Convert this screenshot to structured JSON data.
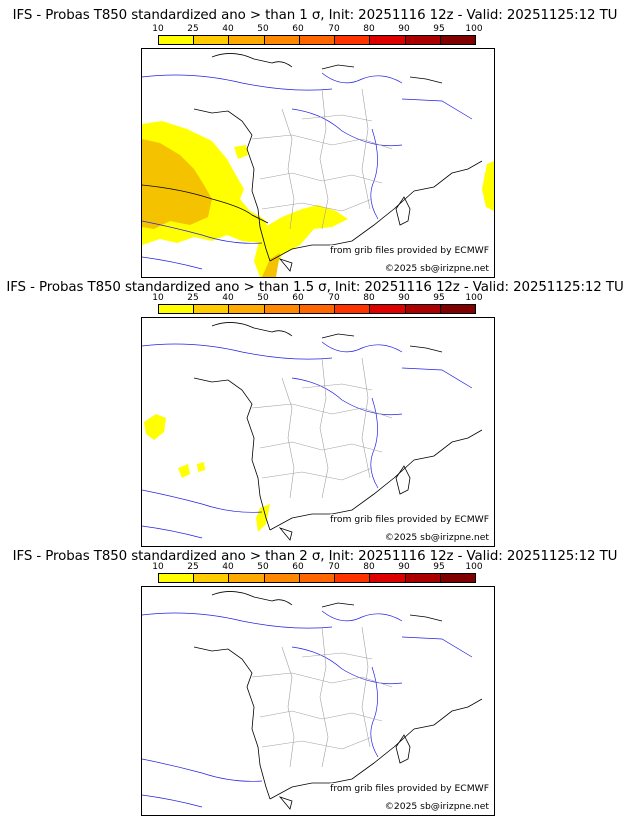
{
  "colorbar": {
    "ticks": [
      "10",
      "25",
      "40",
      "50",
      "60",
      "70",
      "80",
      "90",
      "95",
      "100"
    ],
    "colors": [
      "#ffff00",
      "#ffcc00",
      "#ffaa00",
      "#ff8800",
      "#ff6600",
      "#ff3300",
      "#dd0000",
      "#aa0000",
      "#800000"
    ]
  },
  "colors": {
    "low_prob_fill": "#ffff00",
    "mid_prob_fill": "#f5c200",
    "coastline": "#000000",
    "rivers": "#2323e6",
    "borders": "#a0a0a0"
  },
  "panels": [
    {
      "title": "IFS - Probas T850  standardized ano > than 1 σ, Init: 20251116 12z - Valid: 20251125:12 TU",
      "source": "from grib files provided by ECMWF",
      "copyright": "©2025 sb@irizpne.net"
    },
    {
      "title": "IFS - Probas T850  standardized ano > than 1.5 σ, Init: 20251116 12z - Valid: 20251125:12 TU",
      "source": "from grib files provided by ECMWF",
      "copyright": "©2025 sb@irizpne.net"
    },
    {
      "title": "IFS - Probas T850  standardized ano > than 2 σ, Init: 20251116 12z - Valid: 20251125:12 TU",
      "source": "from grib files provided by ECMWF",
      "copyright": "©2025 sb@irizpne.net"
    }
  ]
}
